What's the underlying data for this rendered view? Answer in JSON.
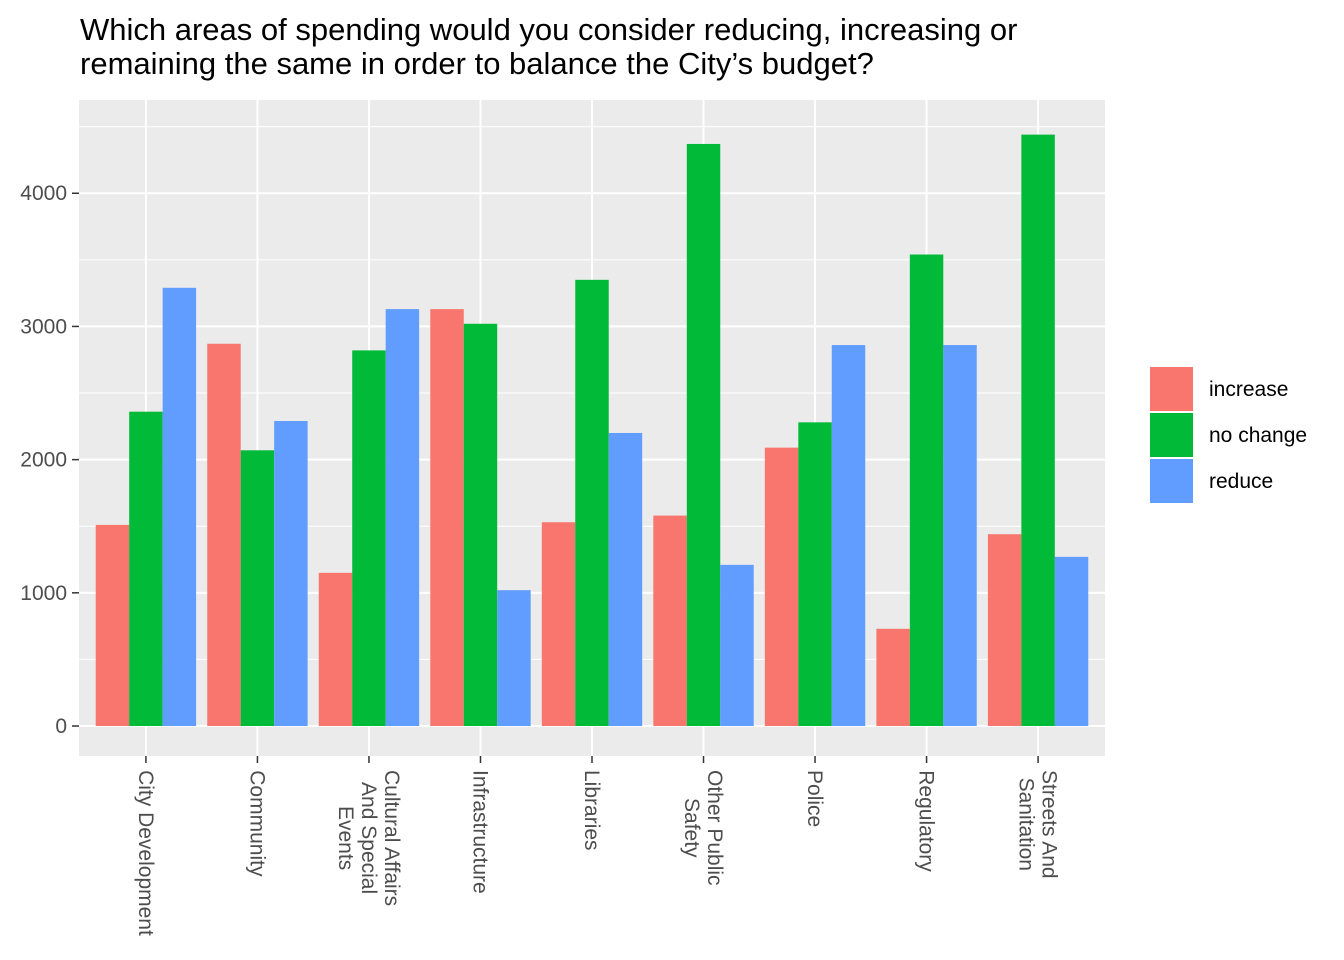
{
  "chart_data": {
    "type": "bar",
    "title": "Which areas of spending would you consider reducing, increasing or remaining the same in order to balance the City’s budget?",
    "title_lines": [
      "Which areas of spending would you consider reducing, increasing or",
      "remaining the same in order to balance the City’s budget?"
    ],
    "xlabel": "",
    "ylabel": "",
    "categories": [
      "City Development",
      "Community",
      "Cultural Affairs And Special Events",
      "Infrastructure",
      "Libraries",
      "Other Public Safety",
      "Police",
      "Regulatory",
      "Streets And Sanitation"
    ],
    "category_label_lines": [
      [
        "City Development"
      ],
      [
        "Community"
      ],
      [
        "Cultural Affairs",
        "And Special",
        "Events"
      ],
      [
        "Infrastructure"
      ],
      [
        "Libraries"
      ],
      [
        "Other Public",
        "Safety"
      ],
      [
        "Police"
      ],
      [
        "Regulatory"
      ],
      [
        "Streets And",
        "Sanitation"
      ]
    ],
    "series": [
      {
        "name": "increase",
        "color": "#F8766D",
        "values": [
          1510,
          2870,
          1150,
          3130,
          1530,
          1580,
          2090,
          730,
          1440
        ]
      },
      {
        "name": "no change",
        "color": "#00BA38",
        "values": [
          2360,
          2070,
          2820,
          3020,
          3350,
          4370,
          2280,
          3540,
          4440
        ]
      },
      {
        "name": "reduce",
        "color": "#619CFF",
        "values": [
          3290,
          2290,
          3130,
          1020,
          2200,
          1210,
          2860,
          2860,
          1270
        ]
      }
    ],
    "ylim": [
      -225,
      4700
    ],
    "yticks": [
      0,
      1000,
      2000,
      3000,
      4000
    ],
    "ytick_labels": [
      "0",
      "1000",
      "2000",
      "3000",
      "4000"
    ],
    "grid": true,
    "legend_position": "right",
    "panel_background": "#EBEBEB",
    "grid_color": "#FFFFFF"
  }
}
